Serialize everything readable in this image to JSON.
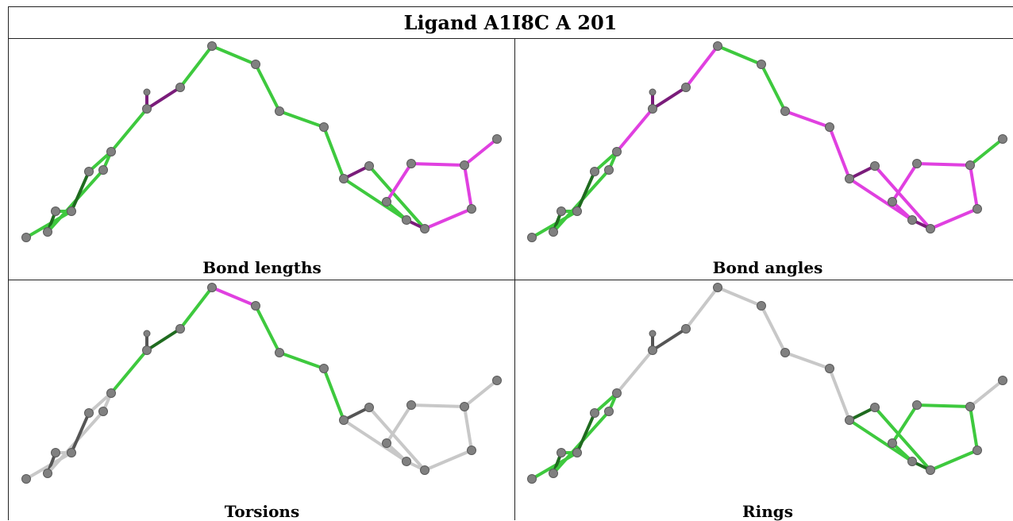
{
  "title": "Ligand A1I8C A 201",
  "panels": [
    {
      "caption": "Bond lengths"
    },
    {
      "caption": "Bond angles"
    },
    {
      "caption": "Torsions"
    },
    {
      "caption": "Rings"
    }
  ],
  "colors": {
    "green": "#3ec93e",
    "dark_green": "#1f6b1f",
    "magenta": "#e040e0",
    "dark_magenta": "#7a1c7a",
    "grey": "#c8c8c8",
    "dark_grey": "#555555",
    "atom": "#808080"
  }
}
